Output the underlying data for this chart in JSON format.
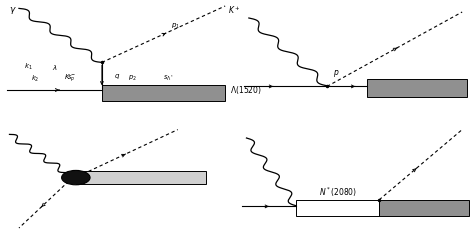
{
  "bg_color": "#ffffff",
  "gray_fill": "#909090",
  "light_gray_fill": "#d0d0d0",
  "dark_color": "#111111"
}
